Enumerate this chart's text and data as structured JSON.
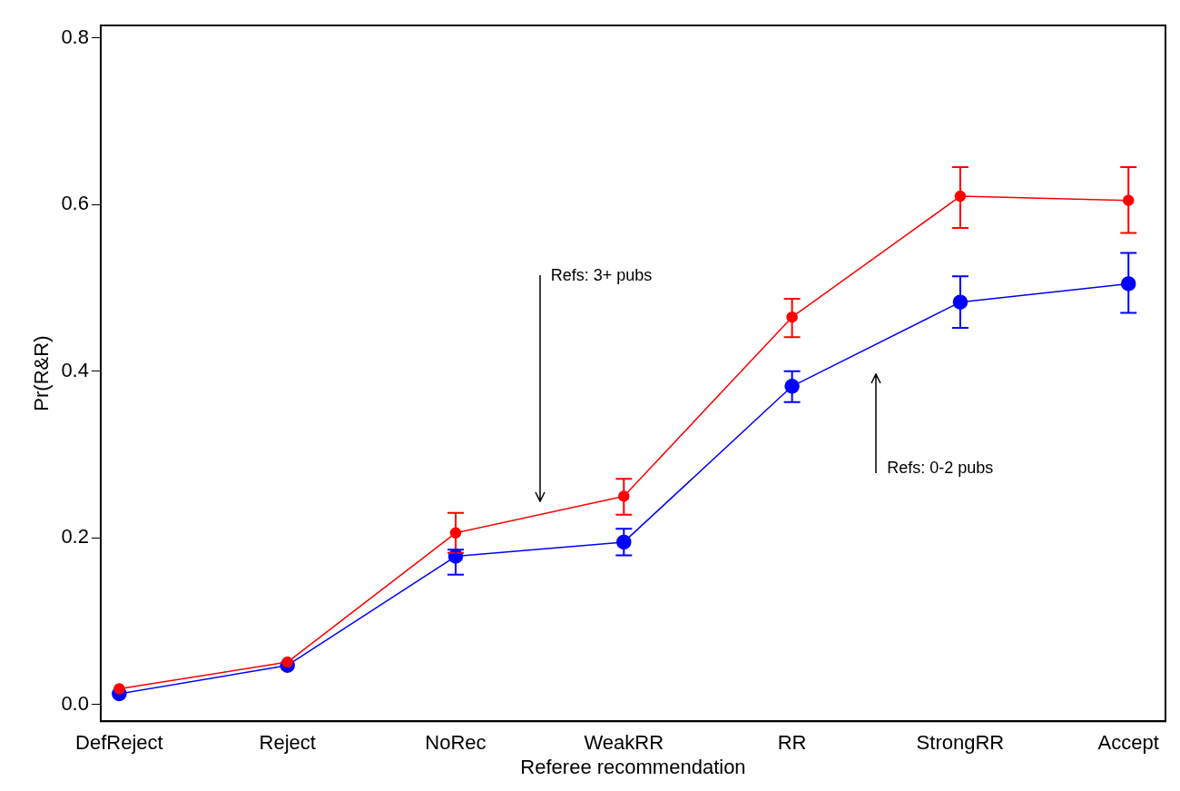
{
  "chart_data": {
    "type": "line",
    "xlabel": "Referee recommendation",
    "ylabel": "Pr(R&R)",
    "categories": [
      "DefReject",
      "Reject",
      "NoRec",
      "WeakRR",
      "RR",
      "StrongRR",
      "Accept"
    ],
    "series": [
      {
        "color": "#ff0000",
        "values": [
          0.019,
          0.051,
          0.206,
          0.25,
          0.465,
          0.61,
          0.605
        ],
        "errors": [
          null,
          null,
          [
            0.182,
            0.23
          ],
          [
            0.228,
            0.271
          ],
          [
            0.441,
            0.487
          ],
          [
            0.572,
            0.645
          ],
          [
            0.566,
            0.645
          ]
        ]
      },
      {
        "color": "#0000ff",
        "values": [
          0.013,
          0.047,
          0.178,
          0.195,
          0.382,
          0.483,
          0.505
        ],
        "errors": [
          null,
          null,
          [
            0.156,
            0.186
          ],
          [
            0.179,
            0.211
          ],
          [
            0.363,
            0.4
          ],
          [
            0.452,
            0.514
          ],
          [
            0.47,
            0.542
          ]
        ]
      }
    ],
    "ylim": [
      -0.02,
      0.815
    ],
    "yticks": [
      {
        "value": 0,
        "label": "0.0"
      },
      0.2,
      0.4,
      0.6,
      0.8
    ],
    "annotations": [
      "Refs: 3+ pubs",
      "Refs: 0-2 pubs"
    ],
    "grid": false,
    "legend": false,
    "marker": "circle",
    "line_style": "solid"
  }
}
